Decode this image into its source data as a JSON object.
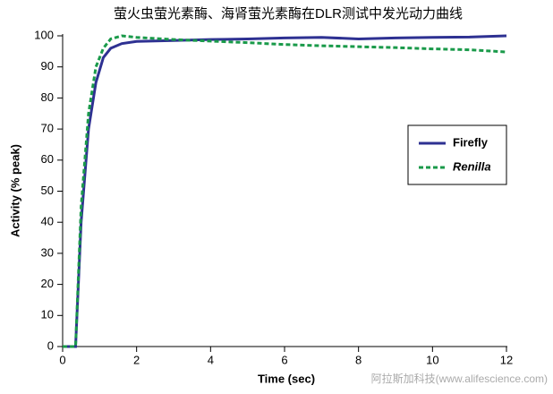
{
  "chart_data": {
    "type": "line",
    "title": "萤火虫萤光素酶、海肾萤光素酶在DLR测试中发光动力曲线",
    "xlabel": "Time (sec)",
    "ylabel": "Activity (% peak)",
    "watermark": "阿拉斯加科技(www.alifescience.com)",
    "x": [
      0,
      0.3,
      0.35,
      0.5,
      0.7,
      0.9,
      1.1,
      1.3,
      1.6,
      2,
      3,
      4,
      5,
      6,
      7,
      8,
      9,
      10,
      11,
      12
    ],
    "series": [
      {
        "name": "Firefly",
        "color": "#2e3192",
        "dash": false,
        "values": [
          0,
          0,
          0,
          40,
          70,
          85,
          93,
          96,
          97.5,
          98.2,
          98.5,
          98.8,
          99,
          99.3,
          99.5,
          99,
          99.3,
          99.5,
          99.6,
          100
        ]
      },
      {
        "name": "Renilla",
        "color": "#1a9a4a",
        "dash": true,
        "values": [
          0,
          0,
          0,
          45,
          75,
          90,
          96,
          99,
          100,
          99.5,
          98.8,
          98.3,
          97.8,
          97.2,
          96.8,
          96.5,
          96.2,
          95.8,
          95.5,
          94.8
        ]
      }
    ],
    "xlim": [
      0,
      12
    ],
    "xticks": [
      0,
      2,
      4,
      6,
      8,
      10,
      12
    ],
    "ylim": [
      0,
      100
    ],
    "yticks": [
      0,
      10,
      20,
      30,
      40,
      50,
      60,
      70,
      80,
      90,
      100
    ],
    "legend": "right",
    "grid": false
  }
}
